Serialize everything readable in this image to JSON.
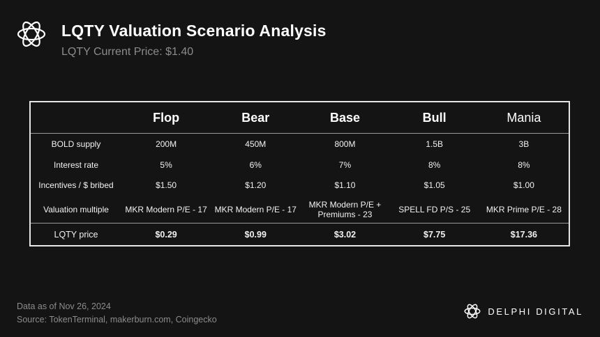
{
  "header": {
    "logo_icon": "delphi-flower-icon",
    "title": "LQTY Valuation Scenario Analysis",
    "subtitle": "LQTY Current Price: $1.40"
  },
  "table": {
    "scenarios": [
      "Flop",
      "Bear",
      "Base",
      "Bull",
      "Mania"
    ],
    "rows": [
      {
        "label": "BOLD supply",
        "values": [
          "200M",
          "450M",
          "800M",
          "1.5B",
          "3B"
        ]
      },
      {
        "label": "Interest rate",
        "values": [
          "5%",
          "6%",
          "7%",
          "8%",
          "8%"
        ]
      },
      {
        "label": "Incentives / $ bribed",
        "values": [
          "$1.50",
          "$1.20",
          "$1.10",
          "$1.05",
          "$1.00"
        ]
      },
      {
        "label": "Valuation multiple",
        "values": [
          "MKR Modern P/E - 17",
          "MKR Modern P/E - 17",
          "MKR Modern P/E + Premiums - 23",
          "SPELL FD P/S - 25",
          "MKR Prime P/E - 28"
        ]
      },
      {
        "label": "LQTY price",
        "values": [
          "$0.29",
          "$0.99",
          "$3.02",
          "$7.75",
          "$17.36"
        ]
      }
    ]
  },
  "footer": {
    "data_as_of": "Data as of Nov 26, 2024",
    "source": "Source: TokenTerminal, makerburn.com, Coingecko",
    "brand_icon": "delphi-flower-icon",
    "brand_name": "DELPHI DIGITAL"
  }
}
